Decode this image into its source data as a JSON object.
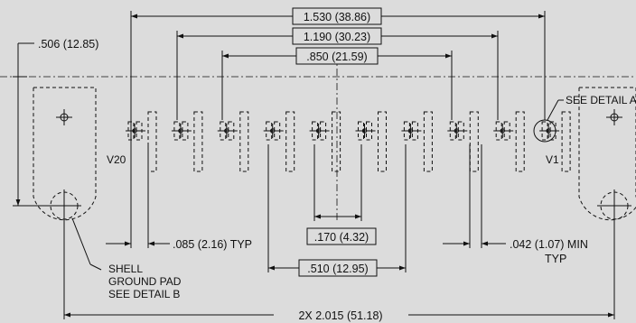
{
  "dimensions": {
    "overall_width": "1.530 (38.86)",
    "outer_pin_span": "1.190 (30.23)",
    "inner_pin_span": ".850 (21.59)",
    "height": ".506 (12.85)",
    "pin_width": ".085 (2.16) TYP",
    "center_gap": ".170 (4.32)",
    "mid_span": ".510 (12.95)",
    "min_gap": ".042 (1.07) MIN",
    "min_gap_note": "TYP",
    "shell_spacing": "2X 2.015 (51.18)"
  },
  "labels": {
    "left_pin": "V20",
    "right_pin": "V1",
    "see_detail_a": "SEE DETAIL A",
    "shell_line1": "SHELL",
    "shell_line2": "GROUND PAD",
    "shell_line3": "SEE DETAIL B"
  }
}
